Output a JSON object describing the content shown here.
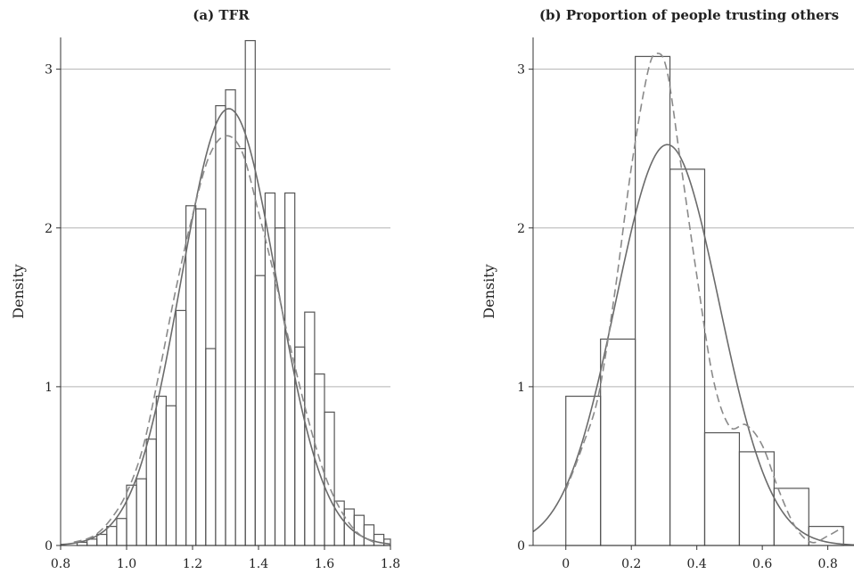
{
  "chart_data": [
    {
      "type": "histogram",
      "title": "(a) TFR",
      "ylabel": "Density",
      "xlabel": "",
      "xlim": [
        0.8,
        1.8
      ],
      "ylim": [
        0,
        3.2
      ],
      "xticks": [
        "0.8",
        "1.0",
        "1.2",
        "1.4",
        "1.6",
        "1.8"
      ],
      "yticks": [
        "0",
        "1",
        "2",
        "3"
      ],
      "grid": "horizontal",
      "bin_start": 0.85,
      "bin_width": 0.03,
      "values": [
        0.02,
        0.04,
        0.07,
        0.12,
        0.17,
        0.38,
        0.42,
        0.67,
        0.94,
        0.88,
        1.48,
        2.14,
        2.12,
        1.24,
        2.77,
        2.87,
        2.5,
        3.18,
        1.7,
        2.22,
        2.0,
        2.22,
        1.25,
        1.47,
        1.08,
        0.84,
        0.28,
        0.23,
        0.19,
        0.13,
        0.07,
        0.04
      ],
      "normal_curve": {
        "mean": 1.31,
        "sd": 0.145
      },
      "kde_curve": {
        "x": [
          0.84,
          0.9,
          0.95,
          1.0,
          1.05,
          1.1,
          1.15,
          1.2,
          1.25,
          1.3,
          1.35,
          1.4,
          1.45,
          1.5,
          1.55,
          1.6,
          1.65,
          1.7,
          1.75
        ],
        "y": [
          0.02,
          0.06,
          0.16,
          0.33,
          0.62,
          1.1,
          1.62,
          2.08,
          2.45,
          2.58,
          2.48,
          2.1,
          1.68,
          1.22,
          0.8,
          0.45,
          0.22,
          0.08,
          0.02
        ]
      }
    },
    {
      "type": "histogram",
      "title": "(b) Proportion of people trusting others",
      "ylabel": "Density",
      "xlabel": "",
      "xlim": [
        -0.1,
        0.88
      ],
      "ylim": [
        0,
        3.2
      ],
      "xticks": [
        "0",
        "0.2",
        "0.4",
        "0.6",
        "0.8"
      ],
      "yticks": [
        "0",
        "1",
        "2",
        "3"
      ],
      "grid": "horizontal",
      "bin_start": 0.0,
      "bin_width": 0.106,
      "values": [
        0.94,
        1.3,
        3.08,
        2.37,
        0.71,
        0.59,
        0.36,
        0.12
      ],
      "normal_curve": {
        "mean": 0.31,
        "sd": 0.158
      },
      "kde_curve": {
        "x": [
          0.0,
          0.05,
          0.1,
          0.15,
          0.2,
          0.25,
          0.28,
          0.31,
          0.35,
          0.4,
          0.45,
          0.5,
          0.55,
          0.6,
          0.65,
          0.7,
          0.75,
          0.8,
          0.85
        ],
        "y": [
          0.35,
          0.62,
          0.95,
          1.6,
          2.38,
          2.98,
          3.1,
          2.98,
          2.42,
          1.7,
          1.05,
          0.75,
          0.76,
          0.63,
          0.35,
          0.12,
          0.02,
          0.06,
          0.12
        ]
      }
    }
  ]
}
